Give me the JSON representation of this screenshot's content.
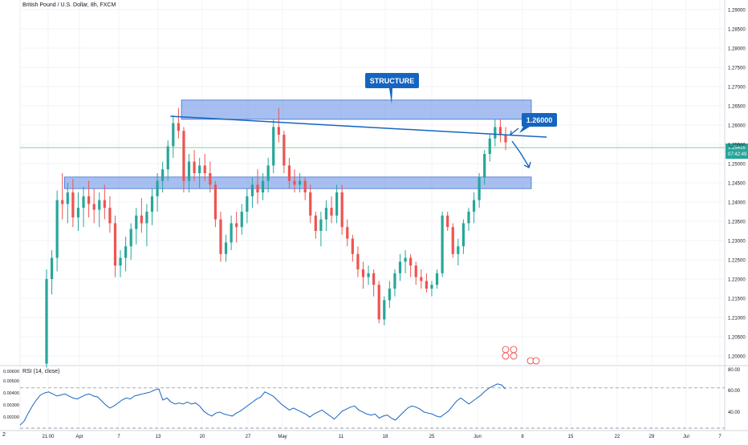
{
  "header": {
    "symbol": "British Pound / U.S. Dollar, 8h, FXCM"
  },
  "rsi": {
    "label": "RSI (14, close)",
    "right_ticks": [
      "80.00",
      "60.00",
      "40.00"
    ],
    "left_ticks": [
      "0.00600",
      "0.00500",
      "0.00400",
      "0.00300",
      "0.00200"
    ]
  },
  "annotations": {
    "structure": "STRUCTURE",
    "target": "1.26000"
  },
  "price_tag": {
    "price": "1.25416",
    "countdown": "07:42:49"
  },
  "corner_label": "2",
  "colors": {
    "up": "#26a69a",
    "down": "#ef5350",
    "zone": "#6d95e6",
    "line": "#1565c0",
    "rsi": "#1565c0",
    "last_price": "#4caf50"
  },
  "chart_data": {
    "type": "candlestick",
    "title": "British Pound / U.S. Dollar, 8h, FXCM",
    "ylim": [
      1.1975,
      1.2925
    ],
    "y_ticks": [
      1.2,
      1.205,
      1.21,
      1.215,
      1.22,
      1.225,
      1.23,
      1.235,
      1.24,
      1.245,
      1.25,
      1.255,
      1.26,
      1.265,
      1.27,
      1.275,
      1.28,
      1.285,
      1.29
    ],
    "x_ticks": [
      "21:00",
      "Apr",
      "7",
      "13",
      "20",
      "27",
      "May",
      "11",
      "18",
      "25",
      "Jun",
      "8",
      "15",
      "22",
      "29",
      "Jul",
      "7"
    ],
    "last_price": 1.25416,
    "candles": [
      {
        "o": 1.198,
        "h": 1.2225,
        "l": 1.197,
        "c": 1.22
      },
      {
        "o": 1.22,
        "h": 1.2275,
        "l": 1.216,
        "c": 1.2255
      },
      {
        "o": 1.2255,
        "h": 1.243,
        "l": 1.222,
        "c": 1.2405
      },
      {
        "o": 1.2405,
        "h": 1.2475,
        "l": 1.2355,
        "c": 1.2395
      },
      {
        "o": 1.2395,
        "h": 1.245,
        "l": 1.2345,
        "c": 1.2425
      },
      {
        "o": 1.2425,
        "h": 1.246,
        "l": 1.2335,
        "c": 1.236
      },
      {
        "o": 1.236,
        "h": 1.2425,
        "l": 1.2325,
        "c": 1.2385
      },
      {
        "o": 1.2385,
        "h": 1.244,
        "l": 1.2335,
        "c": 1.2415
      },
      {
        "o": 1.2415,
        "h": 1.2455,
        "l": 1.236,
        "c": 1.2395
      },
      {
        "o": 1.2395,
        "h": 1.2435,
        "l": 1.2345,
        "c": 1.238
      },
      {
        "o": 1.238,
        "h": 1.2425,
        "l": 1.2335,
        "c": 1.2405
      },
      {
        "o": 1.2405,
        "h": 1.2445,
        "l": 1.2355,
        "c": 1.2385
      },
      {
        "o": 1.2385,
        "h": 1.2415,
        "l": 1.232,
        "c": 1.2345
      },
      {
        "o": 1.2345,
        "h": 1.2365,
        "l": 1.2205,
        "c": 1.2235
      },
      {
        "o": 1.2235,
        "h": 1.2275,
        "l": 1.2205,
        "c": 1.2255
      },
      {
        "o": 1.2255,
        "h": 1.231,
        "l": 1.222,
        "c": 1.2285
      },
      {
        "o": 1.2285,
        "h": 1.2345,
        "l": 1.225,
        "c": 1.233
      },
      {
        "o": 1.233,
        "h": 1.2385,
        "l": 1.229,
        "c": 1.2365
      },
      {
        "o": 1.2365,
        "h": 1.241,
        "l": 1.232,
        "c": 1.2345
      },
      {
        "o": 1.2345,
        "h": 1.2395,
        "l": 1.2285,
        "c": 1.2375
      },
      {
        "o": 1.2375,
        "h": 1.2435,
        "l": 1.234,
        "c": 1.2415
      },
      {
        "o": 1.2415,
        "h": 1.2475,
        "l": 1.2375,
        "c": 1.2455
      },
      {
        "o": 1.2455,
        "h": 1.2505,
        "l": 1.2425,
        "c": 1.2485
      },
      {
        "o": 1.2485,
        "h": 1.256,
        "l": 1.2455,
        "c": 1.2545
      },
      {
        "o": 1.2545,
        "h": 1.2625,
        "l": 1.2515,
        "c": 1.2605
      },
      {
        "o": 1.2605,
        "h": 1.2645,
        "l": 1.2565,
        "c": 1.2585
      },
      {
        "o": 1.2585,
        "h": 1.2595,
        "l": 1.2425,
        "c": 1.2455
      },
      {
        "o": 1.2455,
        "h": 1.2525,
        "l": 1.2425,
        "c": 1.2505
      },
      {
        "o": 1.2505,
        "h": 1.2535,
        "l": 1.2455,
        "c": 1.2475
      },
      {
        "o": 1.2475,
        "h": 1.2515,
        "l": 1.2435,
        "c": 1.2495
      },
      {
        "o": 1.2495,
        "h": 1.2525,
        "l": 1.2455,
        "c": 1.2475
      },
      {
        "o": 1.2475,
        "h": 1.2505,
        "l": 1.2425,
        "c": 1.2445
      },
      {
        "o": 1.2445,
        "h": 1.2455,
        "l": 1.2335,
        "c": 1.2355
      },
      {
        "o": 1.2355,
        "h": 1.2375,
        "l": 1.2245,
        "c": 1.2265
      },
      {
        "o": 1.2265,
        "h": 1.2315,
        "l": 1.2245,
        "c": 1.2295
      },
      {
        "o": 1.2295,
        "h": 1.2365,
        "l": 1.2275,
        "c": 1.2345
      },
      {
        "o": 1.2345,
        "h": 1.2375,
        "l": 1.2295,
        "c": 1.2335
      },
      {
        "o": 1.2335,
        "h": 1.2395,
        "l": 1.2315,
        "c": 1.2375
      },
      {
        "o": 1.2375,
        "h": 1.2435,
        "l": 1.2345,
        "c": 1.2415
      },
      {
        "o": 1.2415,
        "h": 1.2465,
        "l": 1.2385,
        "c": 1.2445
      },
      {
        "o": 1.2445,
        "h": 1.2485,
        "l": 1.2395,
        "c": 1.2425
      },
      {
        "o": 1.2425,
        "h": 1.2475,
        "l": 1.2405,
        "c": 1.2455
      },
      {
        "o": 1.2455,
        "h": 1.2515,
        "l": 1.2425,
        "c": 1.2495
      },
      {
        "o": 1.2495,
        "h": 1.2615,
        "l": 1.2475,
        "c": 1.2595
      },
      {
        "o": 1.2595,
        "h": 1.2645,
        "l": 1.2555,
        "c": 1.2575
      },
      {
        "o": 1.2575,
        "h": 1.2585,
        "l": 1.2475,
        "c": 1.2495
      },
      {
        "o": 1.2495,
        "h": 1.2515,
        "l": 1.2435,
        "c": 1.2455
      },
      {
        "o": 1.2455,
        "h": 1.2485,
        "l": 1.2425,
        "c": 1.2445
      },
      {
        "o": 1.2445,
        "h": 1.2475,
        "l": 1.2425,
        "c": 1.2455
      },
      {
        "o": 1.2455,
        "h": 1.2465,
        "l": 1.2405,
        "c": 1.2425
      },
      {
        "o": 1.2425,
        "h": 1.2445,
        "l": 1.2345,
        "c": 1.2365
      },
      {
        "o": 1.2365,
        "h": 1.2375,
        "l": 1.2305,
        "c": 1.2325
      },
      {
        "o": 1.2325,
        "h": 1.2375,
        "l": 1.2285,
        "c": 1.2355
      },
      {
        "o": 1.2355,
        "h": 1.2405,
        "l": 1.2325,
        "c": 1.2385
      },
      {
        "o": 1.2385,
        "h": 1.2415,
        "l": 1.2345,
        "c": 1.2365
      },
      {
        "o": 1.2365,
        "h": 1.2445,
        "l": 1.2345,
        "c": 1.2425
      },
      {
        "o": 1.2425,
        "h": 1.2445,
        "l": 1.2315,
        "c": 1.2335
      },
      {
        "o": 1.2335,
        "h": 1.2355,
        "l": 1.2285,
        "c": 1.2305
      },
      {
        "o": 1.2305,
        "h": 1.2315,
        "l": 1.2245,
        "c": 1.2265
      },
      {
        "o": 1.2265,
        "h": 1.2285,
        "l": 1.2205,
        "c": 1.2225
      },
      {
        "o": 1.2225,
        "h": 1.2245,
        "l": 1.2175,
        "c": 1.2205
      },
      {
        "o": 1.2205,
        "h": 1.2235,
        "l": 1.2185,
        "c": 1.2215
      },
      {
        "o": 1.2215,
        "h": 1.2225,
        "l": 1.2155,
        "c": 1.2185
      },
      {
        "o": 1.2185,
        "h": 1.2195,
        "l": 1.2085,
        "c": 1.2095
      },
      {
        "o": 1.2095,
        "h": 1.2155,
        "l": 1.208,
        "c": 1.2145
      },
      {
        "o": 1.2145,
        "h": 1.2195,
        "l": 1.2125,
        "c": 1.2175
      },
      {
        "o": 1.2175,
        "h": 1.2225,
        "l": 1.2155,
        "c": 1.2215
      },
      {
        "o": 1.2215,
        "h": 1.2265,
        "l": 1.2195,
        "c": 1.2245
      },
      {
        "o": 1.2245,
        "h": 1.2275,
        "l": 1.2215,
        "c": 1.2255
      },
      {
        "o": 1.2255,
        "h": 1.2265,
        "l": 1.2205,
        "c": 1.2235
      },
      {
        "o": 1.2235,
        "h": 1.2245,
        "l": 1.2185,
        "c": 1.2205
      },
      {
        "o": 1.2205,
        "h": 1.2225,
        "l": 1.2175,
        "c": 1.2195
      },
      {
        "o": 1.2195,
        "h": 1.2215,
        "l": 1.2165,
        "c": 1.2175
      },
      {
        "o": 1.2175,
        "h": 1.2195,
        "l": 1.2155,
        "c": 1.2185
      },
      {
        "o": 1.2185,
        "h": 1.2225,
        "l": 1.2175,
        "c": 1.2215
      },
      {
        "o": 1.2215,
        "h": 1.2375,
        "l": 1.2205,
        "c": 1.2365
      },
      {
        "o": 1.2365,
        "h": 1.2375,
        "l": 1.2325,
        "c": 1.2335
      },
      {
        "o": 1.2335,
        "h": 1.2345,
        "l": 1.2255,
        "c": 1.2265
      },
      {
        "o": 1.2265,
        "h": 1.2305,
        "l": 1.2235,
        "c": 1.2285
      },
      {
        "o": 1.2285,
        "h": 1.2355,
        "l": 1.2265,
        "c": 1.2345
      },
      {
        "o": 1.2345,
        "h": 1.2385,
        "l": 1.2325,
        "c": 1.2375
      },
      {
        "o": 1.2375,
        "h": 1.2425,
        "l": 1.2345,
        "c": 1.2405
      },
      {
        "o": 1.2405,
        "h": 1.2475,
        "l": 1.2385,
        "c": 1.2465
      },
      {
        "o": 1.2465,
        "h": 1.2535,
        "l": 1.2445,
        "c": 1.2525
      },
      {
        "o": 1.2525,
        "h": 1.2575,
        "l": 1.2505,
        "c": 1.2565
      },
      {
        "o": 1.2565,
        "h": 1.2615,
        "l": 1.2545,
        "c": 1.2595
      },
      {
        "o": 1.2595,
        "h": 1.2615,
        "l": 1.2555,
        "c": 1.2575
      },
      {
        "o": 1.2575,
        "h": 1.2595,
        "l": 1.2535,
        "c": 1.2555
      }
    ],
    "zones": [
      {
        "label": "upper",
        "from": 1.2615,
        "to": 1.2665,
        "x_start": 0.204,
        "x_end": 0.7
      },
      {
        "label": "lower",
        "from": 1.2435,
        "to": 1.2465,
        "x_start": 0.038,
        "x_end": 0.7
      }
    ],
    "trendline": {
      "from_candle": 25,
      "from_price": 1.2625,
      "to_candle": 87,
      "to_price": 1.2595
    },
    "rsi": {
      "ylim": [
        30,
        85
      ],
      "levels": [
        70,
        30
      ],
      "values": [
        33,
        37,
        45,
        52,
        58,
        63,
        65,
        66,
        64,
        62,
        63,
        64,
        62,
        60,
        59,
        61,
        63,
        64,
        62,
        61,
        57,
        53,
        50,
        52,
        55,
        58,
        60,
        59,
        62,
        63,
        64,
        65,
        66,
        68,
        69,
        58,
        60,
        56,
        54,
        55,
        54,
        56,
        54,
        55,
        52,
        47,
        44,
        42,
        45,
        46,
        44,
        43,
        42,
        45,
        47,
        50,
        53,
        56,
        59,
        61,
        66,
        64,
        62,
        58,
        54,
        51,
        48,
        50,
        48,
        46,
        44,
        41,
        44,
        46,
        48,
        45,
        42,
        39,
        43,
        47,
        49,
        51,
        52,
        48,
        46,
        44,
        43,
        44,
        40,
        42,
        43,
        40,
        38,
        42,
        46,
        50,
        52,
        51,
        49,
        46,
        45,
        44,
        42,
        41,
        44,
        47,
        52,
        57,
        60,
        57,
        54,
        57,
        60,
        63,
        67,
        70,
        72,
        74,
        73,
        69
      ]
    }
  }
}
